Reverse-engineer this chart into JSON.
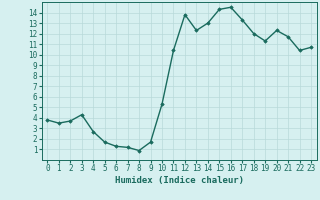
{
  "x": [
    0,
    1,
    2,
    3,
    4,
    5,
    6,
    7,
    8,
    9,
    10,
    11,
    12,
    13,
    14,
    15,
    16,
    17,
    18,
    19,
    20,
    21,
    22,
    23
  ],
  "y": [
    3.8,
    3.5,
    3.7,
    4.3,
    2.7,
    1.7,
    1.3,
    1.2,
    0.9,
    1.7,
    5.3,
    10.4,
    13.8,
    12.3,
    13.0,
    14.3,
    14.5,
    13.3,
    12.0,
    11.3,
    12.3,
    11.7,
    10.4,
    10.7
  ],
  "line_color": "#1a6b5e",
  "marker": "D",
  "markersize": 1.8,
  "linewidth": 1.0,
  "bg_color": "#d6f0f0",
  "grid_color": "#b8dada",
  "xlabel": "Humidex (Indice chaleur)",
  "xlim": [
    -0.5,
    23.5
  ],
  "ylim": [
    0,
    15
  ],
  "xtick_labels": [
    "0",
    "1",
    "2",
    "3",
    "4",
    "5",
    "6",
    "7",
    "8",
    "9",
    "10",
    "11",
    "12",
    "13",
    "14",
    "15",
    "16",
    "17",
    "18",
    "19",
    "20",
    "21",
    "22",
    "23"
  ],
  "ytick_values": [
    1,
    2,
    3,
    4,
    5,
    6,
    7,
    8,
    9,
    10,
    11,
    12,
    13,
    14
  ],
  "xlabel_fontsize": 6.5,
  "tick_fontsize": 5.5
}
